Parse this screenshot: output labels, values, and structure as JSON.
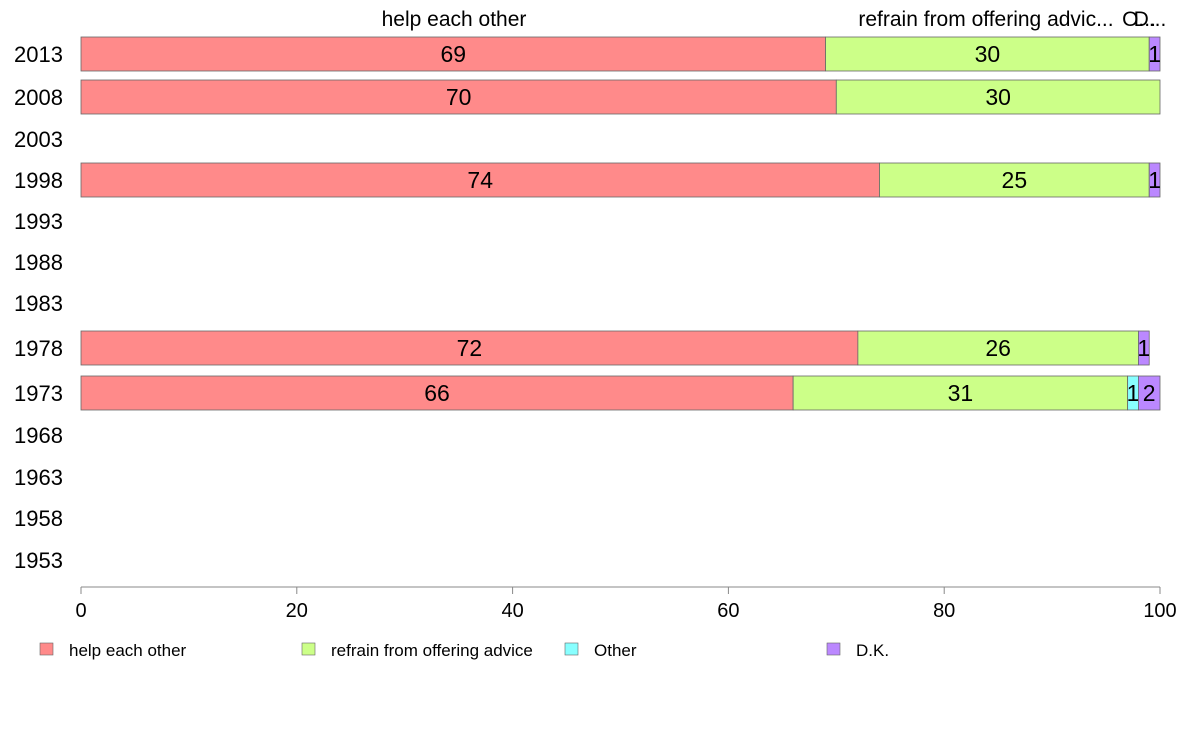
{
  "chart_data": {
    "type": "bar",
    "orientation": "horizontal",
    "stacked": true,
    "categories": [
      "2013",
      "2008",
      "2003",
      "1998",
      "1993",
      "1988",
      "1983",
      "1978",
      "1973",
      "1968",
      "1963",
      "1958",
      "1953"
    ],
    "series": [
      {
        "name": "help each other",
        "color": "#ff8a8a",
        "values": [
          69,
          70,
          null,
          74,
          null,
          null,
          null,
          72,
          66,
          null,
          null,
          null,
          null
        ]
      },
      {
        "name": "refrain from offering advice",
        "color": "#ccff88",
        "values": [
          30,
          30,
          null,
          25,
          null,
          null,
          null,
          26,
          31,
          null,
          null,
          null,
          null
        ]
      },
      {
        "name": "Other",
        "color": "#88ffff",
        "values": [
          0,
          0,
          null,
          0,
          null,
          null,
          null,
          0,
          1,
          null,
          null,
          null,
          null
        ]
      },
      {
        "name": "D.K.",
        "color": "#bb88ff",
        "values": [
          1,
          0,
          null,
          1,
          null,
          null,
          null,
          1,
          2,
          null,
          null,
          null,
          null
        ]
      }
    ],
    "top_labels": [
      "help each other",
      "refrain from offering advic...",
      "O...",
      "D..."
    ],
    "xlim": [
      0,
      100
    ],
    "xticks": [
      0,
      20,
      40,
      60,
      80,
      100
    ],
    "legend_position": "bottom",
    "grid": false
  }
}
